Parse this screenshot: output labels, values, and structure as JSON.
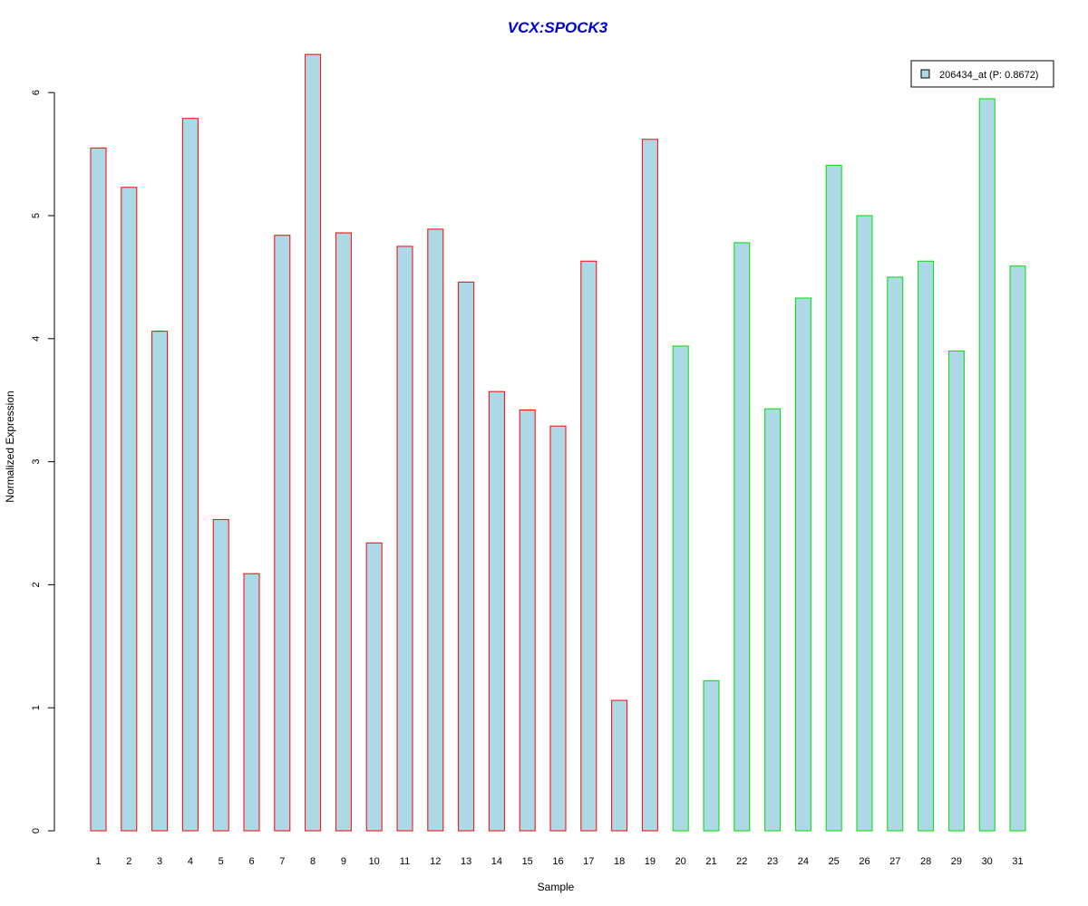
{
  "chart_data": {
    "type": "bar",
    "title": "VCX:SPOCK3",
    "xlabel": "Sample",
    "ylabel": "Normalized Expression",
    "ylim": [
      0,
      6
    ],
    "yticks": [
      0,
      1,
      2,
      3,
      4,
      5,
      6
    ],
    "categories": [
      "1",
      "2",
      "3",
      "4",
      "5",
      "6",
      "7",
      "8",
      "9",
      "10",
      "11",
      "12",
      "13",
      "14",
      "15",
      "16",
      "17",
      "18",
      "19",
      "20",
      "21",
      "22",
      "23",
      "24",
      "25",
      "26",
      "27",
      "28",
      "29",
      "30",
      "31"
    ],
    "series": [
      {
        "name": "206434_at (P: 0.8672)",
        "values": [
          5.55,
          5.23,
          4.06,
          5.79,
          2.53,
          2.09,
          4.84,
          6.31,
          4.86,
          2.34,
          4.75,
          4.89,
          4.46,
          3.57,
          3.42,
          3.29,
          4.63,
          1.06,
          5.62,
          3.94,
          1.22,
          4.78,
          3.43,
          4.33,
          5.41,
          5.0,
          4.5,
          4.63,
          3.9,
          5.95,
          4.59
        ]
      }
    ],
    "groups": [
      {
        "samples": [
          1,
          19
        ],
        "border_color": "#ff0000"
      },
      {
        "samples": [
          20,
          31
        ],
        "border_color": "#00dd00"
      }
    ],
    "colors": {
      "bar_fill": "#add8e6",
      "title": "#0000cc"
    },
    "legend_position": "top-right",
    "grid": false
  }
}
